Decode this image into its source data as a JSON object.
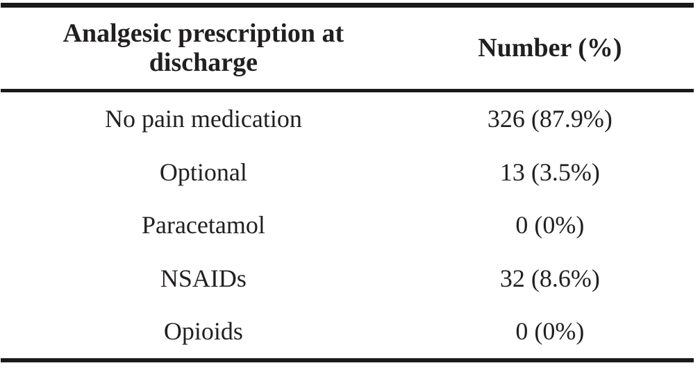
{
  "table": {
    "columns": [
      {
        "label": "Analgesic prescription at discharge"
      },
      {
        "label": "Number (%)"
      }
    ],
    "rows": [
      {
        "label": "No pain medication",
        "value": "326 (87.9%)"
      },
      {
        "label": "Optional",
        "value": "13 (3.5%)"
      },
      {
        "label": "Paracetamol",
        "value": "0 (0%)"
      },
      {
        "label": "NSAIDs",
        "value": "32 (8.6%)"
      },
      {
        "label": "Opioids",
        "value": "0 (0%)"
      }
    ]
  },
  "chart_data": {
    "type": "table",
    "title": "Analgesic prescription at discharge",
    "columns": [
      "Analgesic prescription at discharge",
      "Number (%)"
    ],
    "categories": [
      "No pain medication",
      "Optional",
      "Paracetamol",
      "NSAIDs",
      "Opioids"
    ],
    "counts": [
      326,
      13,
      0,
      32,
      0
    ],
    "percents": [
      87.9,
      3.5,
      0,
      8.6,
      0
    ]
  },
  "colors": {
    "text": "#221f20",
    "rule": "#1b191a",
    "background": "#ffffff"
  }
}
